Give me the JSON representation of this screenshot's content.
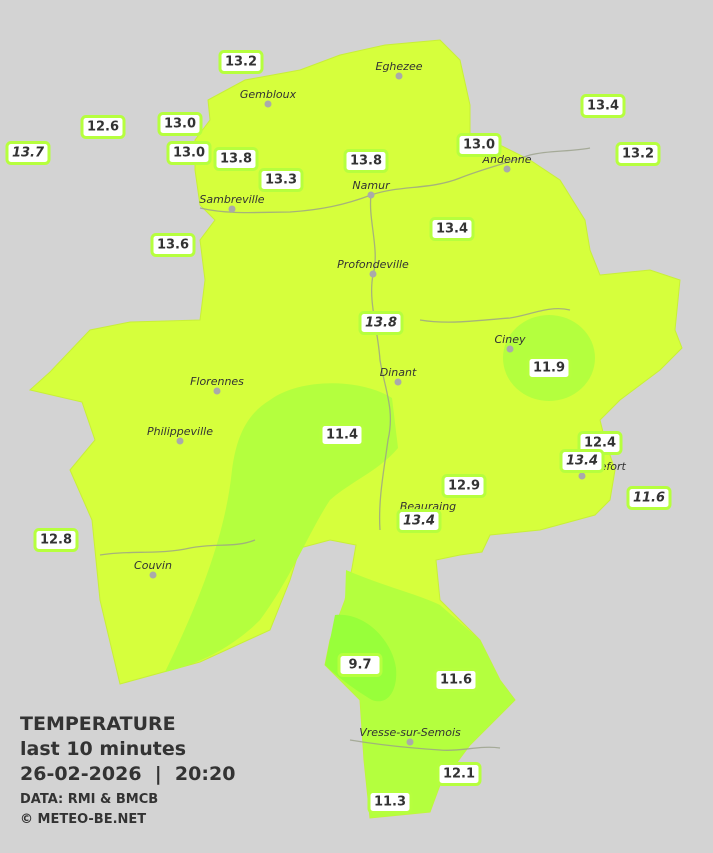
{
  "legend": {
    "heading": "TEMPERATURE",
    "period": "last 10 minutes",
    "datetime": "26-02-2026  |  20:20",
    "source": "DATA: RMI & BMCB",
    "credit": "© METEO-BE.NET"
  },
  "cities": [
    "Eghezee",
    "Gembloux",
    "Andenne",
    "Namur",
    "Sambreville",
    "Profondeville",
    "Ciney",
    "Florennes",
    "Dinant",
    "Philippeville",
    "Rochefort",
    "Beauraing",
    "Couvin",
    "Vresse-sur-Semois"
  ],
  "stations": [
    "13.2",
    "12.6",
    "13.0",
    "13.7",
    "13.0",
    "13.8",
    "13.3",
    "13.8",
    "13.0",
    "13.4",
    "13.2",
    "13.6",
    "13.4",
    "13.8",
    "11.9",
    "11.4",
    "12.4",
    "13.4",
    "11.6",
    "12.9",
    "13.4",
    "12.8",
    "9.7",
    "11.6",
    "12.1",
    "11.3"
  ]
}
